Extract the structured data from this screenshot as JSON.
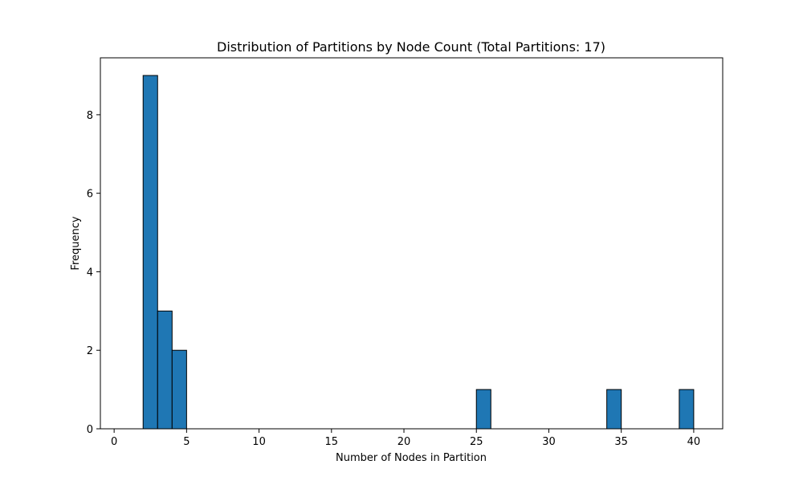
{
  "chart_data": {
    "type": "bar",
    "title": "Distribution of Partitions by Node Count (Total Partitions: 17)",
    "xlabel": "Number of Nodes in Partition",
    "ylabel": "Frequency",
    "xlim": [
      -0.95,
      42.0
    ],
    "ylim": [
      0,
      9.45
    ],
    "xticks": [
      0,
      5,
      10,
      15,
      20,
      25,
      30,
      35,
      40
    ],
    "yticks": [
      0,
      2,
      4,
      6,
      8
    ],
    "bins": [
      {
        "start": 1,
        "end": 2,
        "value": 0
      },
      {
        "start": 2,
        "end": 3,
        "value": 9
      },
      {
        "start": 3,
        "end": 4,
        "value": 3
      },
      {
        "start": 4,
        "end": 5,
        "value": 2
      },
      {
        "start": 25,
        "end": 26,
        "value": 1
      },
      {
        "start": 34,
        "end": 35,
        "value": 1
      },
      {
        "start": 39,
        "end": 40,
        "value": 1
      }
    ],
    "bar_color": "#1f77b4",
    "edge_color": "#000000",
    "grid": false
  }
}
